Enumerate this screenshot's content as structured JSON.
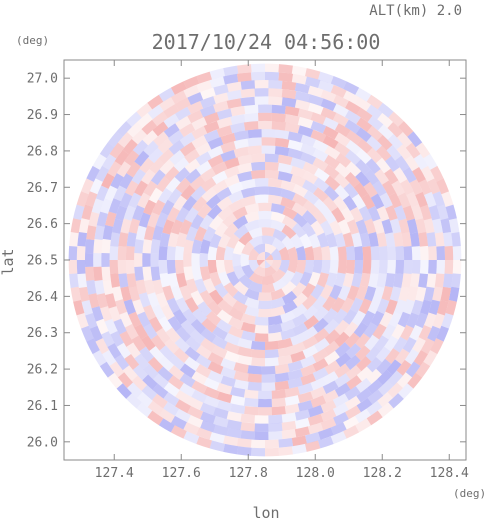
{
  "header": {
    "altitude_label": "ALT(km) 2.0",
    "timestamp": "2017/10/24 04:56:00"
  },
  "chart_data": {
    "type": "heatmap",
    "title": "2017/10/24 04:56:00",
    "xlabel": "lon",
    "ylabel": "lat",
    "x_unit": "(deg)",
    "y_unit": "(deg)",
    "xlim": [
      127.25,
      128.45
    ],
    "ylim": [
      25.95,
      27.05
    ],
    "x_ticks": [
      127.4,
      127.6,
      127.8,
      128.0,
      128.2,
      128.4
    ],
    "x_tick_labels": [
      "127.4",
      "127.6",
      "127.8",
      "128.0",
      "128.2",
      "128.4"
    ],
    "y_ticks": [
      26.0,
      26.1,
      26.2,
      26.3,
      26.4,
      26.5,
      26.6,
      26.7,
      26.8,
      26.9,
      27.0
    ],
    "y_tick_labels": [
      "26.0",
      "26.1",
      "26.2",
      "26.3",
      "26.4",
      "26.5",
      "26.6",
      "26.7",
      "26.8",
      "26.9",
      "27.0"
    ],
    "center": {
      "lon": 127.85,
      "lat": 26.5
    },
    "radius_lat_deg": 0.54,
    "colors": {
      "positive": "#f08c8c",
      "negative": "#8c8cf0",
      "frame": "#808080"
    }
  }
}
